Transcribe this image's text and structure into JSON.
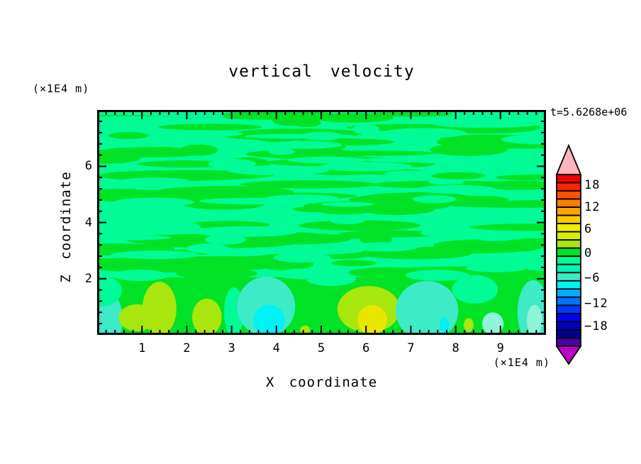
{
  "title": "vertical velocity",
  "time_label": "t=5.6268e+06",
  "axes": {
    "x": {
      "label": "X coordinate",
      "unit_note": "(×1E4 m)",
      "ticks": [
        1,
        2,
        3,
        4,
        5,
        6,
        7,
        8,
        9
      ],
      "range": [
        0,
        10
      ],
      "minor_step": 0.2
    },
    "y": {
      "label": "Z coordinate",
      "unit_note": "(×1E4 m)",
      "ticks": [
        2,
        4,
        6
      ],
      "range": [
        0,
        8
      ],
      "minor_step": 0.4
    }
  },
  "colorbar": {
    "tick_labels": [
      "18",
      "12",
      "6",
      "0",
      "−6",
      "−12",
      "−18"
    ],
    "segment_colors": [
      "#EE0000",
      "#FF2200",
      "#FF5200",
      "#FF7C00",
      "#FFA300",
      "#FFC900",
      "#F0EE00",
      "#D6F000",
      "#A9E60D",
      "#00E226",
      "#00FB97",
      "#00F5B4",
      "#3DEBC6",
      "#00F2F2",
      "#00AEFF",
      "#0072FF",
      "#0038FF",
      "#0000F0",
      "#0000BE",
      "#00008C",
      "#4B00A0"
    ],
    "over_arrow_color": "#FFB4BE",
    "under_arrow_color": "#BE00C8"
  },
  "palette": {
    "spring": "#00FB97",
    "green": "#00E226",
    "chartreuse": "#A9E60D",
    "yellow": "#E9E700",
    "turquoise": "#3DEBC6",
    "cyan": "#00F2F2",
    "pale_aqua": "#8FF5D8"
  },
  "chart_data": {
    "type": "heatmap",
    "title": "vertical velocity",
    "xlabel": "X coordinate (×1E4 m)",
    "ylabel": "Z coordinate (×1E4 m)",
    "x_range": [
      0,
      10
    ],
    "y_range": [
      0,
      8
    ],
    "time": "t=5.6268e+06",
    "colorbar_ticks": [
      18,
      12,
      6,
      0,
      -6,
      -12,
      -18
    ],
    "contour_interval": 2,
    "displayed_value_range": [
      -20,
      20
    ],
    "legend_position": "right",
    "field_summary": "Vertical velocity field mostly within -2..+2 (green / spring-green wavy horizontal streaks) above z=2; a boundary layer below z=2 contains updraft cells (+2..+8, chartreuse/yellow) and downdraft cells (-2..-6, turquoise/cyan)",
    "texture": {
      "seed": 42,
      "green_streaks": 95,
      "spring_streaks": 48,
      "z_extent": [
        2.05,
        8.0
      ]
    },
    "boundary_layer": {
      "z_extent": [
        0,
        2.05
      ],
      "base_value_band": "0..+2",
      "features": [
        {
          "x": 0.16,
          "z": 0.56,
          "rx": 0.41,
          "rz": 1.06,
          "color": "turquoise",
          "value_band": "-2..-4"
        },
        {
          "x": 0.08,
          "z": 1.57,
          "rx": 0.47,
          "rz": 0.56,
          "color": "spring",
          "value_band": "-2..0"
        },
        {
          "x": 0.95,
          "z": 2.12,
          "rx": 0.63,
          "rz": 0.2,
          "color": "spring",
          "value_band": "-2..0"
        },
        {
          "x": 4.75,
          "z": 2.17,
          "rx": 0.79,
          "rz": 0.2,
          "color": "spring",
          "value_band": "-2..0"
        },
        {
          "x": 7.59,
          "z": 2.12,
          "rx": 0.71,
          "rz": 0.2,
          "color": "spring",
          "value_band": "-2..0"
        },
        {
          "x": 5.22,
          "z": 1.99,
          "rx": 0.55,
          "rz": 0.25,
          "color": "spring",
          "value_band": "-2..0"
        },
        {
          "x": 0.89,
          "z": 0.61,
          "rx": 0.41,
          "rz": 0.48,
          "color": "chartreuse",
          "value_band": "+2..+6"
        },
        {
          "x": 1.39,
          "z": 0.93,
          "rx": 0.38,
          "rz": 0.96,
          "color": "chartreuse",
          "value_band": "+2..+6"
        },
        {
          "x": 2.45,
          "z": 0.63,
          "rx": 0.33,
          "rz": 0.66,
          "color": "chartreuse",
          "value_band": "+2..+6"
        },
        {
          "x": 3.05,
          "z": 0.81,
          "rx": 0.22,
          "rz": 0.88,
          "color": "spring",
          "value_band": "-2..0"
        },
        {
          "x": 3.77,
          "z": 1.01,
          "rx": 0.65,
          "rz": 1.06,
          "color": "turquoise",
          "value_band": "-2..-4"
        },
        {
          "x": 3.84,
          "z": 0.51,
          "rx": 0.35,
          "rz": 0.56,
          "color": "cyan",
          "value_band": "-4..-6"
        },
        {
          "x": 4.64,
          "z": 0.18,
          "rx": 0.11,
          "rz": 0.15,
          "color": "chartreuse",
          "value_band": "+2..+6"
        },
        {
          "x": 6.06,
          "z": 0.91,
          "rx": 0.7,
          "rz": 0.83,
          "color": "chartreuse",
          "value_band": "+2..+6"
        },
        {
          "x": 6.14,
          "z": 0.53,
          "rx": 0.33,
          "rz": 0.53,
          "color": "yellow",
          "value_band": "+6..+8"
        },
        {
          "x": 7.36,
          "z": 0.86,
          "rx": 0.7,
          "rz": 1.06,
          "color": "turquoise",
          "value_band": "-2..-4"
        },
        {
          "x": 8.43,
          "z": 1.62,
          "rx": 0.51,
          "rz": 0.51,
          "color": "spring",
          "value_band": "-2..0"
        },
        {
          "x": 7.75,
          "z": 0.35,
          "rx": 0.11,
          "rz": 0.28,
          "color": "cyan",
          "value_band": "-4..-6"
        },
        {
          "x": 8.29,
          "z": 0.35,
          "rx": 0.11,
          "rz": 0.25,
          "color": "chartreuse",
          "value_band": "+2..+6"
        },
        {
          "x": 8.83,
          "z": 0.4,
          "rx": 0.24,
          "rz": 0.4,
          "color": "pale_aqua",
          "value_band": "-2..-4"
        },
        {
          "x": 9.73,
          "z": 0.81,
          "rx": 0.35,
          "rz": 1.14,
          "color": "turquoise",
          "value_band": "-2..-4"
        },
        {
          "x": 9.76,
          "z": 0.51,
          "rx": 0.17,
          "rz": 0.56,
          "color": "pale_aqua",
          "value_band": "-2..-4"
        }
      ]
    }
  }
}
